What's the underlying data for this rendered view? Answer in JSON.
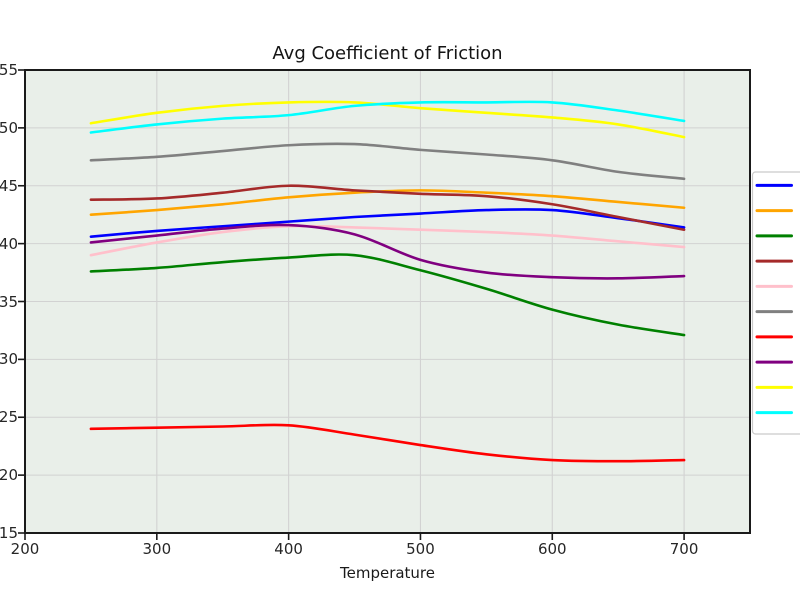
{
  "chart_data": {
    "type": "line",
    "title": "Avg Coefficient of Friction",
    "xlabel": "Temperature",
    "ylabel": "",
    "x": [
      250,
      300,
      350,
      400,
      450,
      500,
      550,
      600,
      650,
      700
    ],
    "series": [
      {
        "name": "blue",
        "color": "blue",
        "values": [
          40.6,
          41.1,
          41.5,
          41.9,
          42.3,
          42.6,
          42.9,
          42.9,
          42.2,
          41.4
        ]
      },
      {
        "name": "orange",
        "color": "orange",
        "values": [
          42.5,
          42.9,
          43.4,
          44.0,
          44.4,
          44.6,
          44.4,
          44.1,
          43.6,
          43.1
        ]
      },
      {
        "name": "green",
        "color": "green",
        "values": [
          37.6,
          37.9,
          38.4,
          38.8,
          39.0,
          37.7,
          36.1,
          34.3,
          33.0,
          32.1
        ]
      },
      {
        "name": "brown",
        "color": "brown",
        "values": [
          43.8,
          43.9,
          44.4,
          45.0,
          44.6,
          44.3,
          44.1,
          43.4,
          42.3,
          41.2
        ]
      },
      {
        "name": "pink",
        "color": "pink",
        "values": [
          39.0,
          40.1,
          41.0,
          41.5,
          41.4,
          41.2,
          41.0,
          40.7,
          40.2,
          39.7
        ]
      },
      {
        "name": "gray",
        "color": "gray",
        "values": [
          47.2,
          47.5,
          48.0,
          48.5,
          48.6,
          48.1,
          47.7,
          47.2,
          46.2,
          45.6
        ]
      },
      {
        "name": "red",
        "color": "red",
        "values": [
          24.0,
          24.1,
          24.2,
          24.3,
          23.5,
          22.6,
          21.8,
          21.3,
          21.2,
          21.3
        ]
      },
      {
        "name": "purple",
        "color": "purple",
        "values": [
          40.1,
          40.7,
          41.3,
          41.6,
          40.8,
          38.6,
          37.5,
          37.1,
          37.0,
          37.2
        ]
      },
      {
        "name": "yellow",
        "color": "yellow",
        "values": [
          50.4,
          51.3,
          51.9,
          52.2,
          52.2,
          51.7,
          51.3,
          50.9,
          50.3,
          49.2
        ]
      },
      {
        "name": "cyan",
        "color": "cyan",
        "values": [
          49.6,
          50.3,
          50.8,
          51.1,
          51.9,
          52.2,
          52.2,
          52.2,
          51.5,
          50.6
        ]
      }
    ],
    "xticks": {
      "values": [
        200,
        300,
        400,
        500,
        600,
        700
      ],
      "labels": [
        "200",
        "300",
        "400",
        "500",
        "600",
        "700"
      ]
    },
    "yticks": {
      "values": [
        15,
        20,
        25,
        30,
        35,
        40,
        45,
        50,
        55
      ],
      "labels": [
        "15",
        "20",
        "25",
        "30",
        "35",
        "40",
        "45",
        "50",
        "55"
      ]
    },
    "xlim": [
      200,
      750
    ],
    "ylim": [
      15,
      55
    ],
    "grid": true,
    "legend": {
      "position": "outside-right",
      "labels_visible": false,
      "swatch_count": 10
    },
    "styles": {
      "plot_bg": "#e9efe9",
      "grid_color": "#d2d2d2",
      "spine_color": "#1a1a1a",
      "text_color": "#1a1a1a",
      "legend_bg": "#ffffff",
      "legend_border": "#c9c9c9",
      "line_width": 2.6
    }
  }
}
